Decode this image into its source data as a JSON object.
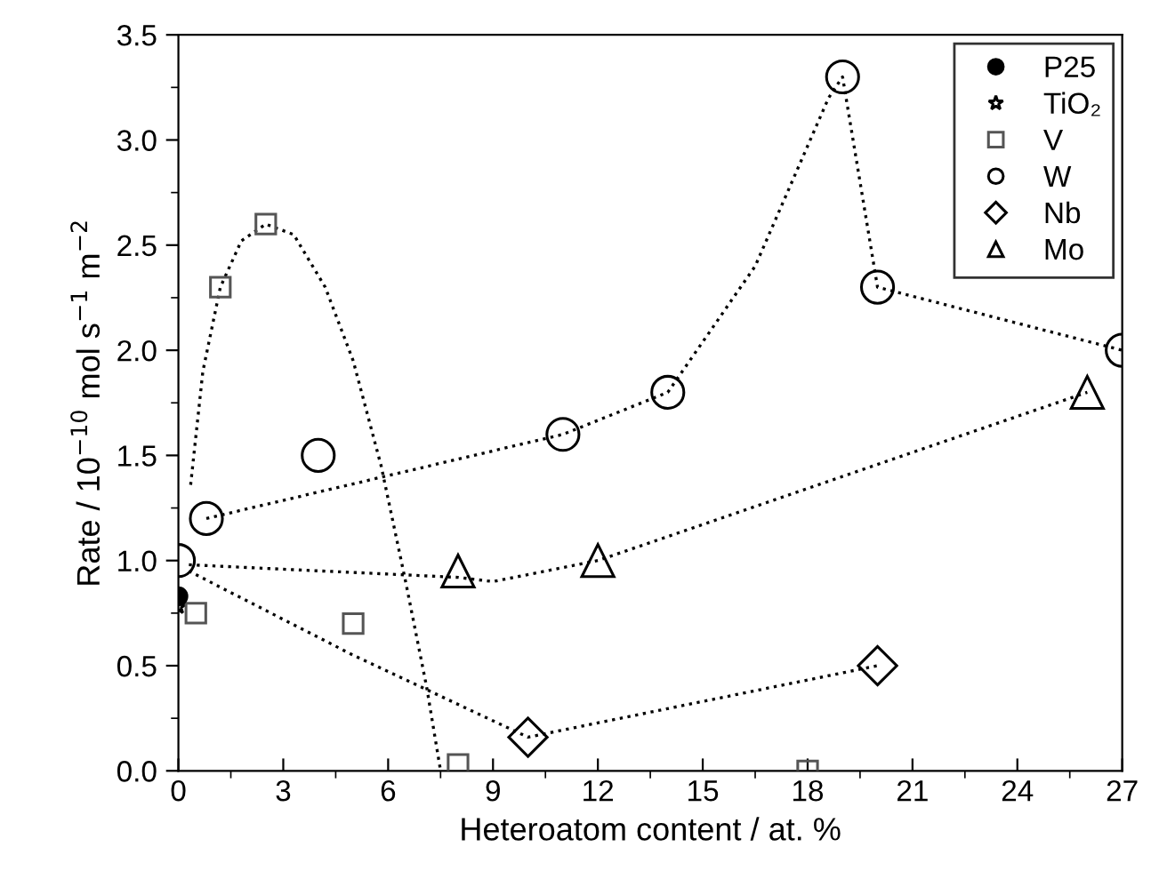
{
  "chart_data": {
    "type": "scatter",
    "xlabel": "Heteroatom content / at. %",
    "ylabel": "Rate / 10$^{−10}$ mol s$^{−1}$ m$^{−2}$",
    "xlim": [
      0,
      27
    ],
    "ylim": [
      0,
      3.5
    ],
    "xticks": [
      0,
      3,
      6,
      9,
      12,
      15,
      18,
      21,
      24,
      27
    ],
    "yticks": [
      {
        "value": 0,
        "label": "0.0"
      },
      {
        "value": 0.5,
        "label": "0.5"
      },
      {
        "value": 1,
        "label": "1.0"
      },
      {
        "value": 1.5,
        "label": "1.5"
      },
      {
        "value": 2,
        "label": "2.0"
      },
      {
        "value": 2.5,
        "label": "2.5"
      },
      {
        "value": 3,
        "label": "3.0"
      },
      {
        "value": 3.5,
        "label": "3.5"
      }
    ],
    "legend": "top right",
    "grid": false,
    "series": [
      {
        "name": "P25",
        "color": "#000000",
        "marker": "circle",
        "colors": [
          "#000000"
        ],
        "x": [
          0
        ],
        "values": [
          0.83
        ]
      },
      {
        "name": "TiO₂",
        "color": "#000000",
        "marker": "star",
        "x": [
          0
        ],
        "values": [
          0.78
        ]
      },
      {
        "name": "V",
        "color": "#555555",
        "marker": "square",
        "x": [
          0.5,
          1.2,
          2.5,
          5,
          8,
          18
        ],
        "values": [
          0.75,
          2.3,
          2.6,
          0.7,
          0.03,
          0.0
        ]
      },
      {
        "name": "W",
        "color": "#000000",
        "marker": "circle",
        "x": [
          0,
          0.8,
          4,
          11,
          14,
          19,
          20,
          27
        ],
        "values": [
          1.0,
          1.2,
          1.5,
          1.6,
          1.8,
          3.3,
          2.3,
          2.0
        ]
      },
      {
        "name": "Nb",
        "color": "#000000",
        "marker": "diamond",
        "x": [
          10,
          20
        ],
        "values": [
          0.16,
          0.5
        ]
      },
      {
        "name": "Mo",
        "color": "#000000",
        "marker": "triangle",
        "x": [
          8,
          12,
          26
        ],
        "values": [
          0.95,
          1.0,
          1.8
        ]
      },
      {
        "type": "line",
        "color": "#000000",
        "line_style": "dotted",
        "x": [
          0.35,
          0.7,
          1.2,
          1.8,
          2.5,
          3.3,
          4.2,
          5,
          5.8,
          6.5,
          7.1,
          7.5
        ],
        "values": [
          1.36,
          1.9,
          2.3,
          2.52,
          2.6,
          2.55,
          2.3,
          1.95,
          1.45,
          0.9,
          0.4,
          0.0
        ]
      },
      {
        "type": "line",
        "color": "#000000",
        "line_style": "dotted",
        "x": [
          0.8,
          11,
          14,
          16.5,
          18.6,
          19,
          20,
          27
        ],
        "values": [
          1.2,
          1.6,
          1.8,
          2.4,
          3.2,
          3.3,
          2.3,
          2.0
        ]
      },
      {
        "type": "line",
        "color": "#000000",
        "line_style": "dotted",
        "x": [
          0.3,
          8,
          9,
          12,
          26
        ],
        "values": [
          0.98,
          0.92,
          0.9,
          1.0,
          1.8
        ]
      },
      {
        "type": "line",
        "color": "#000000",
        "line_style": "dotted",
        "x": [
          0.3,
          5,
          10,
          20
        ],
        "values": [
          0.95,
          0.55,
          0.16,
          0.5
        ]
      }
    ]
  }
}
